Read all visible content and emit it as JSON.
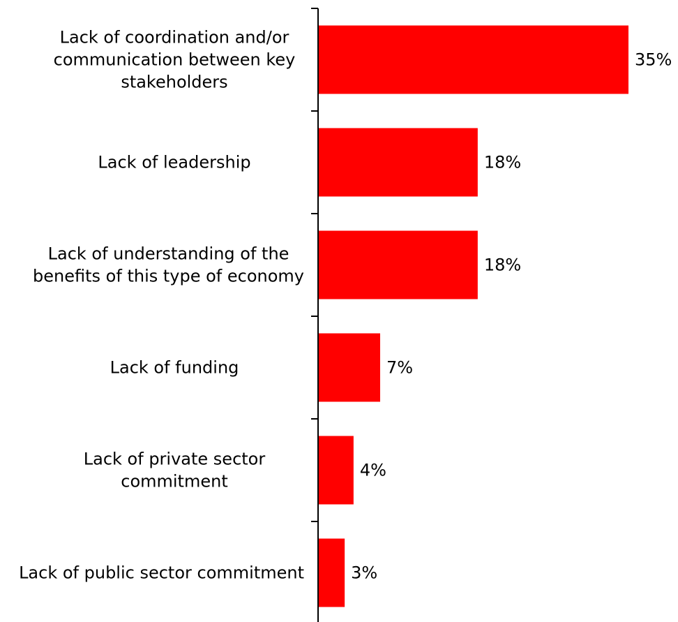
{
  "chart_data": {
    "type": "bar",
    "orientation": "horizontal",
    "categories": [
      "Lack of coordination and/or communication between key stakeholders",
      "Lack of leadership",
      "Lack of understanding of the benefits of this type of economy",
      "Lack of funding",
      "Lack of private sector commitment",
      "Lack of public sector commitment"
    ],
    "category_lines": [
      [
        "Lack of coordination and/or",
        "communication between key",
        "stakeholders"
      ],
      [
        "Lack of leadership"
      ],
      [
        "Lack of understanding of the",
        "benefits of this type of economy"
      ],
      [
        "Lack of funding"
      ],
      [
        "Lack of private sector",
        "commitment"
      ],
      [
        "Lack of public sector commitment"
      ]
    ],
    "values": [
      35,
      18,
      18,
      7,
      4,
      3
    ],
    "value_labels": [
      "35%",
      "18%",
      "18%",
      "7%",
      "4%",
      "3%"
    ],
    "bar_color": "#ff0000",
    "xlim": [
      0,
      35
    ],
    "grid": false,
    "legend": "none",
    "title": "",
    "xlabel": "",
    "ylabel": ""
  }
}
